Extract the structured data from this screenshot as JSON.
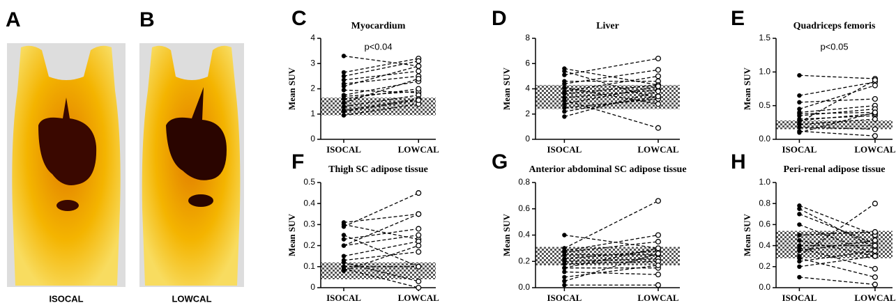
{
  "images": [
    {
      "letter": "A",
      "caption": "ISOCAL"
    },
    {
      "letter": "B",
      "caption": "LOWCAL"
    }
  ],
  "chart_data": [
    {
      "type": "paired",
      "letter": "C",
      "title": "Myocardium",
      "ylabel": "Mean SUV",
      "annotation": "p<0.04",
      "categories": [
        "ISOCAL",
        "LOWCAL"
      ],
      "ylim": [
        0,
        4
      ],
      "yticks": [
        0,
        1,
        2,
        3,
        4
      ],
      "band": [
        0.95,
        1.65
      ],
      "series": [
        {
          "values": [
            3.3,
            2.9
          ]
        },
        {
          "values": [
            2.65,
            3.2
          ]
        },
        {
          "values": [
            2.5,
            3.1
          ]
        },
        {
          "values": [
            2.35,
            2.7
          ]
        },
        {
          "values": [
            2.2,
            2.5
          ]
        },
        {
          "values": [
            2.1,
            2.9
          ]
        },
        {
          "values": [
            1.95,
            1.85
          ]
        },
        {
          "values": [
            1.75,
            2.3
          ]
        },
        {
          "values": [
            1.7,
            1.9
          ]
        },
        {
          "values": [
            1.6,
            2.0
          ]
        },
        {
          "values": [
            1.45,
            2.4
          ]
        },
        {
          "values": [
            1.3,
            1.75
          ]
        },
        {
          "values": [
            1.15,
            1.6
          ]
        },
        {
          "values": [
            0.95,
            1.4
          ]
        },
        {
          "values": [
            1.1,
            1.55
          ]
        }
      ]
    },
    {
      "type": "paired",
      "letter": "D",
      "title": "Liver",
      "ylabel": "Mean SUV",
      "categories": [
        "ISOCAL",
        "LOWCAL"
      ],
      "ylim": [
        0,
        8
      ],
      "yticks": [
        0,
        2,
        4,
        6,
        8
      ],
      "band": [
        2.4,
        4.3
      ],
      "series": [
        {
          "values": [
            5.6,
            4.3
          ]
        },
        {
          "values": [
            5.4,
            3.2
          ]
        },
        {
          "values": [
            5.1,
            6.4
          ]
        },
        {
          "values": [
            4.6,
            4.6
          ]
        },
        {
          "values": [
            4.4,
            5.5
          ]
        },
        {
          "values": [
            4.1,
            2.8
          ]
        },
        {
          "values": [
            3.8,
            5.0
          ]
        },
        {
          "values": [
            3.6,
            4.3
          ]
        },
        {
          "values": [
            3.3,
            3.9
          ]
        },
        {
          "values": [
            3.1,
            0.9
          ]
        },
        {
          "values": [
            2.8,
            4.2
          ]
        },
        {
          "values": [
            2.5,
            3.2
          ]
        },
        {
          "values": [
            2.2,
            3.4
          ]
        },
        {
          "values": [
            1.8,
            3.8
          ]
        }
      ]
    },
    {
      "type": "paired",
      "letter": "E",
      "title": "Quadriceps femoris",
      "ylabel": "Mean SUV",
      "annotation": "p<0.05",
      "categories": [
        "ISOCAL",
        "LOWCAL"
      ],
      "ylim": [
        0,
        1.5
      ],
      "yticks": [
        {
          "value": 0,
          "label": "0.0"
        },
        0.5,
        {
          "value": 1,
          "label": "1.0"
        },
        1.5
      ],
      "band": [
        0.15,
        0.28
      ],
      "series": [
        {
          "values": [
            0.95,
            0.9
          ]
        },
        {
          "values": [
            0.65,
            0.85
          ]
        },
        {
          "values": [
            0.55,
            0.6
          ]
        },
        {
          "values": [
            0.45,
            0.8
          ]
        },
        {
          "values": [
            0.4,
            0.5
          ]
        },
        {
          "values": [
            0.38,
            0.4
          ]
        },
        {
          "values": [
            0.35,
            0.45
          ]
        },
        {
          "values": [
            0.3,
            0.35
          ]
        },
        {
          "values": [
            0.28,
            0.38
          ]
        },
        {
          "values": [
            0.22,
            0.3
          ]
        },
        {
          "values": [
            0.18,
            0.15
          ]
        },
        {
          "values": [
            0.12,
            0.05
          ]
        },
        {
          "values": [
            0.25,
            0.88
          ]
        },
        {
          "values": [
            0.1,
            0.4
          ]
        }
      ]
    },
    {
      "type": "paired",
      "letter": "F",
      "title": "Thigh SC adipose tissue",
      "ylabel": "Mean SUV",
      "categories": [
        "ISOCAL",
        "LOWCAL"
      ],
      "ylim": [
        0,
        0.5
      ],
      "yticks": [
        0,
        0.1,
        0.2,
        0.3,
        0.4,
        0.5
      ],
      "band": [
        0.04,
        0.12
      ],
      "series": [
        {
          "values": [
            0.31,
            0.35
          ]
        },
        {
          "values": [
            0.3,
            0.23
          ]
        },
        {
          "values": [
            0.29,
            0.45
          ]
        },
        {
          "values": [
            0.25,
            0.1
          ]
        },
        {
          "values": [
            0.23,
            0.28
          ]
        },
        {
          "values": [
            0.2,
            0.25
          ]
        },
        {
          "values": [
            0.2,
            0.35
          ]
        },
        {
          "values": [
            0.15,
            0.22
          ]
        },
        {
          "values": [
            0.13,
            0.17
          ]
        },
        {
          "values": [
            0.1,
            0.1
          ]
        },
        {
          "values": [
            0.09,
            0.0
          ]
        },
        {
          "values": [
            0.12,
            0.03
          ]
        },
        {
          "values": [
            0.08,
            0.2
          ]
        }
      ]
    },
    {
      "type": "paired",
      "letter": "G",
      "title": "Anterior abdominal SC adipose tissue",
      "ylabel": "Mean SUV",
      "categories": [
        "ISOCAL",
        "LOWCAL"
      ],
      "ylim": [
        0,
        0.8
      ],
      "yticks": [
        {
          "value": 0,
          "label": "0.0"
        },
        0.2,
        0.4,
        0.6,
        0.8
      ],
      "band": [
        0.17,
        0.31
      ],
      "series": [
        {
          "values": [
            0.4,
            0.3
          ]
        },
        {
          "values": [
            0.3,
            0.66
          ]
        },
        {
          "values": [
            0.28,
            0.4
          ]
        },
        {
          "values": [
            0.27,
            0.35
          ]
        },
        {
          "values": [
            0.25,
            0.25
          ]
        },
        {
          "values": [
            0.22,
            0.28
          ]
        },
        {
          "values": [
            0.2,
            0.22
          ]
        },
        {
          "values": [
            0.18,
            0.2
          ]
        },
        {
          "values": [
            0.15,
            0.3
          ]
        },
        {
          "values": [
            0.15,
            0.15
          ]
        },
        {
          "values": [
            0.12,
            0.1
          ]
        },
        {
          "values": [
            0.08,
            0.17
          ]
        },
        {
          "values": [
            0.02,
            0.02
          ]
        },
        {
          "values": [
            0.05,
            0.26
          ]
        }
      ]
    },
    {
      "type": "paired",
      "letter": "H",
      "title": "Peri-renal adipose tissue",
      "ylabel": "Mean SUV",
      "categories": [
        "ISOCAL",
        "LOWCAL"
      ],
      "ylim": [
        0,
        1
      ],
      "yticks": [
        {
          "value": 0,
          "label": "0.0"
        },
        0.2,
        0.4,
        0.6,
        0.8,
        {
          "value": 1,
          "label": "1.0"
        }
      ],
      "band": [
        0.28,
        0.54
      ],
      "series": [
        {
          "values": [
            0.78,
            0.5
          ]
        },
        {
          "values": [
            0.75,
            0.38
          ]
        },
        {
          "values": [
            0.7,
            0.42
          ]
        },
        {
          "values": [
            0.6,
            0.32
          ]
        },
        {
          "values": [
            0.5,
            0.53
          ]
        },
        {
          "values": [
            0.45,
            0.3
          ]
        },
        {
          "values": [
            0.4,
            0.4
          ]
        },
        {
          "values": [
            0.38,
            0.18
          ]
        },
        {
          "values": [
            0.3,
            0.8
          ]
        },
        {
          "values": [
            0.28,
            0.1
          ]
        },
        {
          "values": [
            0.25,
            0.35
          ]
        },
        {
          "values": [
            0.1,
            0.03
          ]
        },
        {
          "values": [
            0.2,
            0.3
          ]
        },
        {
          "values": [
            0.35,
            0.45
          ]
        }
      ]
    }
  ]
}
